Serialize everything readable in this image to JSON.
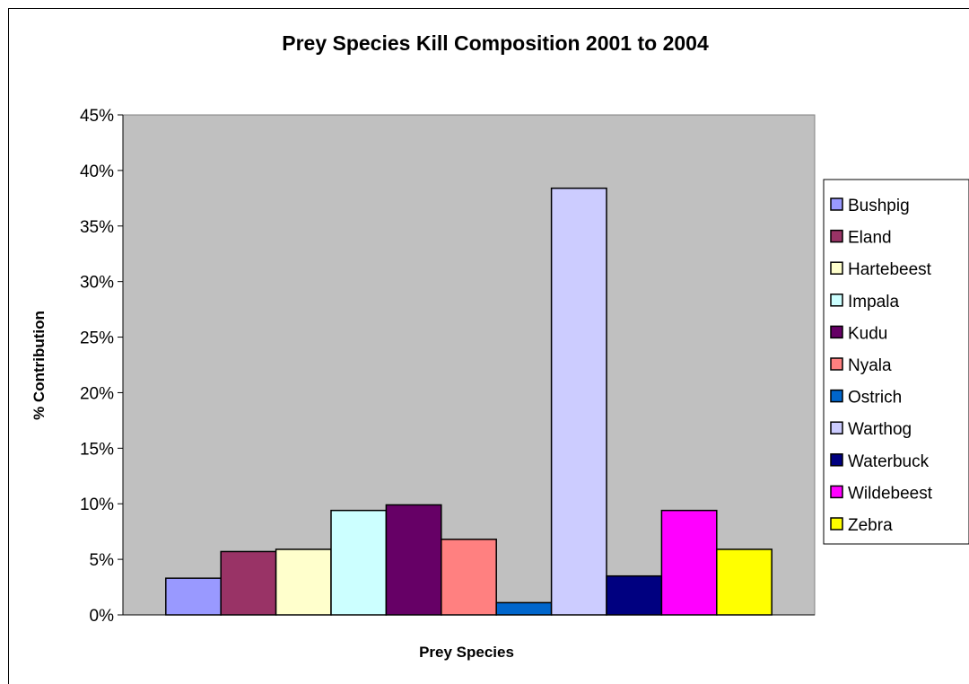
{
  "chart_data": {
    "type": "bar",
    "title": "Prey Species Kill Composition 2001 to 2004",
    "xlabel": "Prey Species",
    "ylabel": "% Contribution",
    "ylim": [
      0,
      45
    ],
    "y_ticks": [
      "0%",
      "5%",
      "10%",
      "15%",
      "20%",
      "25%",
      "30%",
      "35%",
      "40%",
      "45%"
    ],
    "grid": false,
    "plot_background": "#c0c0c0",
    "legend_position": "right",
    "series": [
      {
        "name": "Bushpig",
        "value": 3.3,
        "color": "#9999ff"
      },
      {
        "name": "Eland",
        "value": 5.7,
        "color": "#993366"
      },
      {
        "name": "Hartebeest",
        "value": 5.9,
        "color": "#ffffcc"
      },
      {
        "name": "Impala",
        "value": 9.4,
        "color": "#ccffff"
      },
      {
        "name": "Kudu",
        "value": 9.9,
        "color": "#660066"
      },
      {
        "name": "Nyala",
        "value": 6.8,
        "color": "#ff8080"
      },
      {
        "name": "Ostrich",
        "value": 1.1,
        "color": "#0066cc"
      },
      {
        "name": "Warthog",
        "value": 38.4,
        "color": "#ccccff"
      },
      {
        "name": "Waterbuck",
        "value": 3.5,
        "color": "#000080"
      },
      {
        "name": "Wildebeest",
        "value": 9.4,
        "color": "#ff00ff"
      },
      {
        "name": "Zebra",
        "value": 5.9,
        "color": "#ffff00"
      }
    ]
  }
}
